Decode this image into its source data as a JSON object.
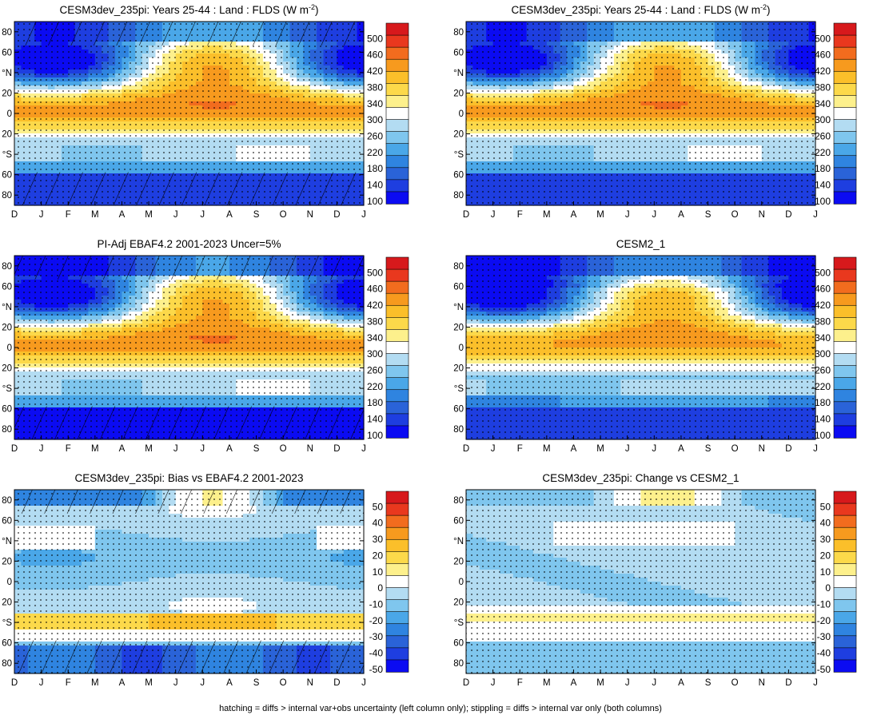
{
  "figure": {
    "footnote": "hatching = diffs > internal var+obs uncertainty (left column only); stippling = diffs > internal var only (both columns)"
  },
  "shared": {
    "months": [
      "D",
      "J",
      "F",
      "M",
      "A",
      "M",
      "J",
      "J",
      "A",
      "S",
      "O",
      "N",
      "D",
      "J"
    ],
    "lat_ticks": [
      "80",
      "60",
      "°N",
      "20",
      "0",
      "20",
      "°S",
      "60",
      "80"
    ],
    "lat_values": [
      80,
      60,
      40,
      20,
      0,
      -20,
      -40,
      -60,
      -80
    ]
  },
  "chart_data": [
    {
      "id": "p1",
      "type": "heatmap",
      "field": "abs",
      "title": "CESM3dev_235pi: Years 25-44 : Land : FLDS (W m",
      "title_sup": "-2",
      "title_tail": ")",
      "xlabel": "",
      "ylabel": "",
      "ylim": [
        -90,
        90
      ],
      "hatch": "left",
      "colorbar": {
        "labels": [
          "500",
          "460",
          "420",
          "380",
          "340",
          "300",
          "260",
          "220",
          "180",
          "140",
          "100"
        ],
        "colors": [
          "#d7191c",
          "#e9381e",
          "#f26c1e",
          "#f79a1e",
          "#fbbf2a",
          "#fcd94a",
          "#fdf08c",
          "#ffffff",
          "#b3dcf2",
          "#7fc6ee",
          "#4aa7e8",
          "#2f84e0",
          "#2a63d8",
          "#1e3ee0",
          "#0b0bf2"
        ],
        "range": [
          80,
          520
        ]
      }
    },
    {
      "id": "p2",
      "type": "heatmap",
      "field": "abs2",
      "title": "CESM3dev_235pi: Years 25-44 : Land : FLDS (W m",
      "title_sup": "-2",
      "title_tail": ")",
      "ylim": [
        -90,
        90
      ],
      "hatch": "none",
      "colorbar": {
        "labels": [
          "500",
          "460",
          "420",
          "380",
          "340",
          "300",
          "260",
          "220",
          "180",
          "140",
          "100"
        ],
        "colors": [
          "#d7191c",
          "#e9381e",
          "#f26c1e",
          "#f79a1e",
          "#fbbf2a",
          "#fcd94a",
          "#fdf08c",
          "#ffffff",
          "#b3dcf2",
          "#7fc6ee",
          "#4aa7e8",
          "#2f84e0",
          "#2a63d8",
          "#1e3ee0",
          "#0b0bf2"
        ],
        "range": [
          80,
          520
        ]
      }
    },
    {
      "id": "p3",
      "type": "heatmap",
      "field": "obs",
      "title": "PI-Adj EBAF4.2 2001-2023 Uncer=5%",
      "title_sup": "",
      "title_tail": "",
      "ylim": [
        -90,
        90
      ],
      "hatch": "left",
      "colorbar": {
        "labels": [
          "500",
          "460",
          "420",
          "380",
          "340",
          "300",
          "260",
          "220",
          "180",
          "140",
          "100"
        ],
        "colors": [
          "#d7191c",
          "#e9381e",
          "#f26c1e",
          "#f79a1e",
          "#fbbf2a",
          "#fcd94a",
          "#fdf08c",
          "#ffffff",
          "#b3dcf2",
          "#7fc6ee",
          "#4aa7e8",
          "#2f84e0",
          "#2a63d8",
          "#1e3ee0",
          "#0b0bf2"
        ],
        "range": [
          80,
          520
        ]
      }
    },
    {
      "id": "p4",
      "type": "heatmap",
      "field": "cesm2",
      "title": "CESM2_1",
      "title_sup": "",
      "title_tail": "",
      "ylim": [
        -90,
        90
      ],
      "hatch": "none",
      "colorbar": {
        "labels": [
          "500",
          "460",
          "420",
          "380",
          "340",
          "300",
          "260",
          "220",
          "180",
          "140",
          "100"
        ],
        "colors": [
          "#d7191c",
          "#e9381e",
          "#f26c1e",
          "#f79a1e",
          "#fbbf2a",
          "#fcd94a",
          "#fdf08c",
          "#ffffff",
          "#b3dcf2",
          "#7fc6ee",
          "#4aa7e8",
          "#2f84e0",
          "#2a63d8",
          "#1e3ee0",
          "#0b0bf2"
        ],
        "range": [
          80,
          520
        ]
      }
    },
    {
      "id": "p5",
      "type": "heatmap",
      "field": "bias",
      "title": "CESM3dev_235pi: Bias vs EBAF4.2 2001-2023",
      "title_sup": "",
      "title_tail": "",
      "ylim": [
        -90,
        90
      ],
      "hatch": "left",
      "colorbar": {
        "labels": [
          "50",
          "40",
          "30",
          "20",
          "10",
          "0",
          "-10",
          "-20",
          "-30",
          "-40",
          "-50"
        ],
        "colors": [
          "#d7191c",
          "#e9381e",
          "#f26c1e",
          "#f79a1e",
          "#fbbf2a",
          "#fcd94a",
          "#fdf08c",
          "#ffffff",
          "#b3dcf2",
          "#7fc6ee",
          "#4aa7e8",
          "#2f84e0",
          "#2a63d8",
          "#1e3ee0",
          "#0b0bf2"
        ],
        "range": [
          -60,
          60
        ]
      }
    },
    {
      "id": "p6",
      "type": "heatmap",
      "field": "change",
      "title": "CESM3dev_235pi: Change vs CESM2_1",
      "title_sup": "",
      "title_tail": "",
      "ylim": [
        -90,
        90
      ],
      "hatch": "none",
      "colorbar": {
        "labels": [
          "50",
          "40",
          "30",
          "20",
          "10",
          "0",
          "-10",
          "-20",
          "-30",
          "-40",
          "-50"
        ],
        "colors": [
          "#d7191c",
          "#e9381e",
          "#f26c1e",
          "#f79a1e",
          "#fbbf2a",
          "#fcd94a",
          "#fdf08c",
          "#ffffff",
          "#b3dcf2",
          "#7fc6ee",
          "#4aa7e8",
          "#2f84e0",
          "#2a63d8",
          "#1e3ee0",
          "#0b0bf2"
        ],
        "range": [
          -60,
          60
        ]
      }
    }
  ]
}
